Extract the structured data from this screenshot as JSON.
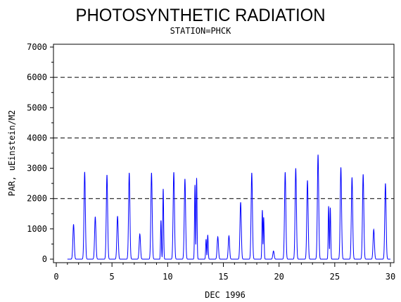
{
  "chart_data": {
    "type": "line",
    "title": "PHOTOSYNTHETIC RADIATION",
    "subtitle": "STATION=PHCK",
    "xlabel": "DEC 1996",
    "ylabel": "PAR, uEinstein/M2",
    "xlim": [
      0,
      30
    ],
    "ylim": [
      0,
      7000
    ],
    "x_ticks": [
      0,
      5,
      10,
      15,
      20,
      25,
      30
    ],
    "y_ticks": [
      0,
      1000,
      2000,
      3000,
      4000,
      5000,
      6000,
      7000
    ],
    "reference_lines": [
      2000,
      4000,
      6000
    ],
    "grid": false,
    "line_color": "#0000ff",
    "daily_peaks": [
      {
        "day": 1,
        "peaks": [
          [
            0.55,
            1150
          ]
        ]
      },
      {
        "day": 2,
        "peaks": [
          [
            0.55,
            2880
          ]
        ]
      },
      {
        "day": 3,
        "peaks": [
          [
            0.5,
            1400
          ]
        ]
      },
      {
        "day": 4,
        "peaks": [
          [
            0.55,
            2780
          ]
        ]
      },
      {
        "day": 5,
        "peaks": [
          [
            0.5,
            1420
          ]
        ]
      },
      {
        "day": 6,
        "peaks": [
          [
            0.55,
            2850
          ]
        ]
      },
      {
        "day": 7,
        "peaks": [
          [
            0.5,
            830
          ]
        ]
      },
      {
        "day": 8,
        "peaks": [
          [
            0.55,
            2850
          ]
        ]
      },
      {
        "day": 9,
        "peaks": [
          [
            0.4,
            1280
          ],
          [
            0.6,
            2320
          ]
        ]
      },
      {
        "day": 10,
        "peaks": [
          [
            0.55,
            2870
          ]
        ]
      },
      {
        "day": 11,
        "peaks": [
          [
            0.55,
            2650
          ]
        ]
      },
      {
        "day": 12,
        "peaks": [
          [
            0.45,
            2450
          ],
          [
            0.6,
            2680
          ]
        ]
      },
      {
        "day": 13,
        "peaks": [
          [
            0.45,
            660
          ],
          [
            0.6,
            800
          ]
        ]
      },
      {
        "day": 14,
        "peaks": [
          [
            0.5,
            740
          ]
        ]
      },
      {
        "day": 15,
        "peaks": [
          [
            0.5,
            770
          ]
        ]
      },
      {
        "day": 16,
        "peaks": [
          [
            0.55,
            1880
          ]
        ]
      },
      {
        "day": 17,
        "peaks": [
          [
            0.55,
            2850
          ]
        ]
      },
      {
        "day": 18,
        "peaks": [
          [
            0.5,
            1620
          ],
          [
            0.62,
            1380
          ]
        ]
      },
      {
        "day": 19,
        "peaks": [
          [
            0.5,
            270
          ]
        ]
      },
      {
        "day": 20,
        "peaks": [
          [
            0.55,
            2870
          ]
        ]
      },
      {
        "day": 21,
        "peaks": [
          [
            0.5,
            3000
          ]
        ]
      },
      {
        "day": 22,
        "peaks": [
          [
            0.55,
            2600
          ]
        ]
      },
      {
        "day": 23,
        "peaks": [
          [
            0.5,
            3450
          ]
        ]
      },
      {
        "day": 24,
        "peaks": [
          [
            0.45,
            1750
          ],
          [
            0.6,
            1700
          ]
        ]
      },
      {
        "day": 25,
        "peaks": [
          [
            0.55,
            3030
          ]
        ]
      },
      {
        "day": 26,
        "peaks": [
          [
            0.55,
            2700
          ]
        ]
      },
      {
        "day": 27,
        "peaks": [
          [
            0.55,
            2800
          ]
        ]
      },
      {
        "day": 28,
        "peaks": [
          [
            0.5,
            980
          ]
        ]
      },
      {
        "day": 29,
        "peaks": [
          [
            0.55,
            2500
          ]
        ]
      }
    ]
  }
}
